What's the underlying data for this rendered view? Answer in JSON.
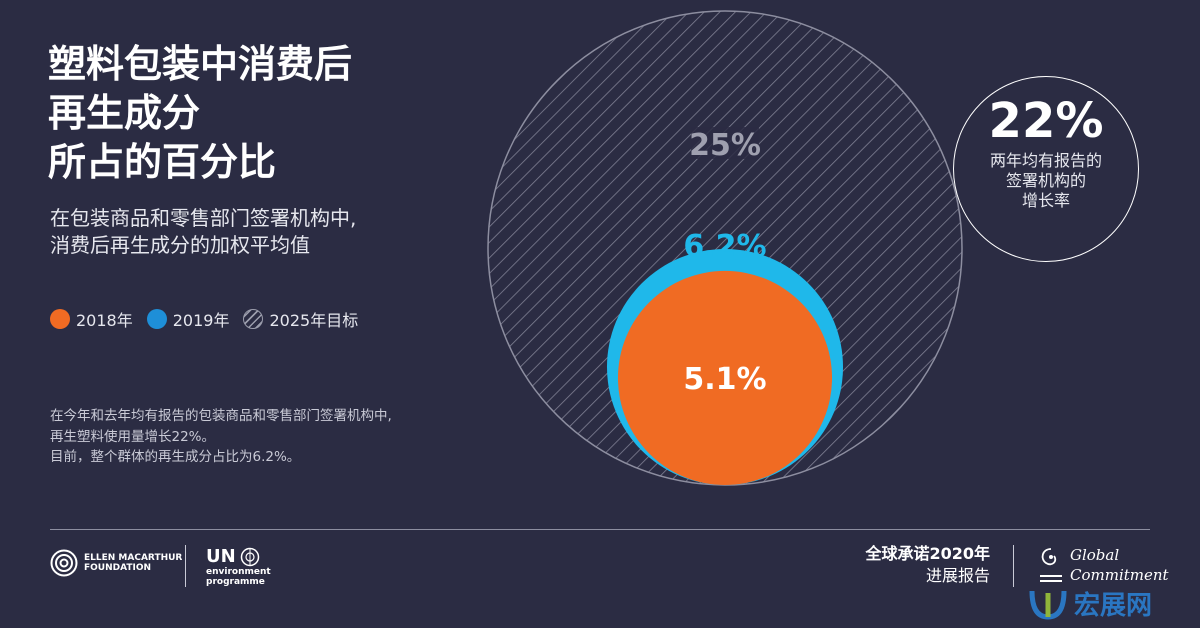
{
  "title_lines": [
    "塑料包装中消费后",
    "再生成分",
    "所占的百分比"
  ],
  "subtitle_lines": [
    "在包装商品和零售部门签署机构中,",
    "消费后再生成分的加权平均值"
  ],
  "legend": [
    "2018年",
    "2019年",
    "2025年目标"
  ],
  "note_lines": [
    "在今年和去年均有报告的包装商品和零售部门签署机构中,",
    "再生塑料使用量增长22%。",
    "目前，整个群体的再生成分占比为6.2%。"
  ],
  "badge": {
    "value": "22%",
    "label_lines": [
      "两年均有报告的",
      "签署机构的",
      "增长率"
    ]
  },
  "chart_data": {
    "type": "nested-circle",
    "series": [
      {
        "name": "2025年目标",
        "value": 25,
        "label": "25%"
      },
      {
        "name": "2019年",
        "value": 6.2,
        "label": "6.2%"
      },
      {
        "name": "2018年",
        "value": 5.1,
        "label": "5.1%"
      }
    ]
  },
  "footer": {
    "efm_lines": [
      "ELLEN MACARTHUR",
      "FOUNDATION"
    ],
    "un_label": "UN",
    "un_sub_lines": [
      "environment",
      "programme"
    ],
    "report_lines": [
      "全球承诺2020年",
      "进展报告"
    ],
    "gc_lines": [
      "Global",
      "Commitment"
    ],
    "watermark": "宏展网"
  },
  "colors": {
    "background": "#2b2c43",
    "orange": "#f06b23",
    "cyan": "#1fb8ea",
    "blue": "#1e8fd8",
    "hatch": "#8d8ea0"
  }
}
